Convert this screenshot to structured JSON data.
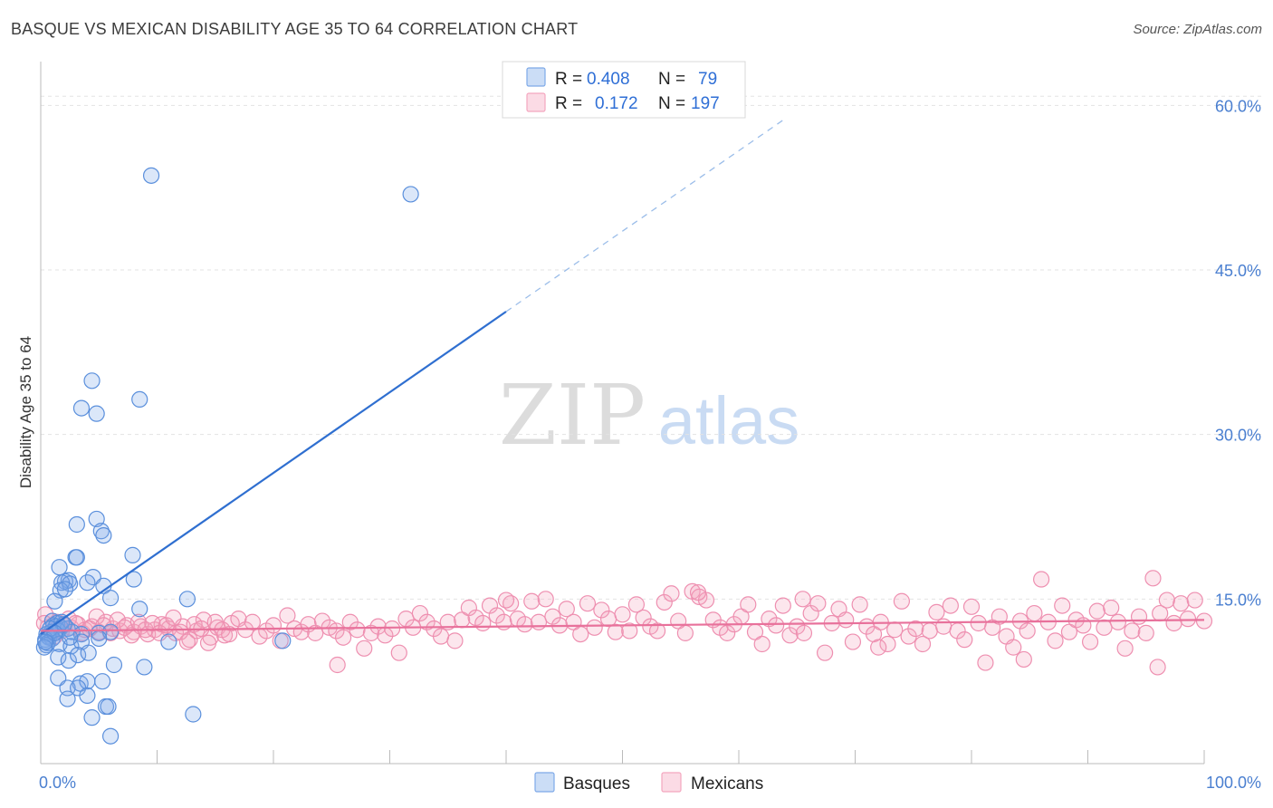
{
  "title": "BASQUE VS MEXICAN DISABILITY AGE 35 TO 64 CORRELATION CHART",
  "source": "Source: ZipAtlas.com",
  "watermark": {
    "zip": "ZIP",
    "atlas": "atlas"
  },
  "legend_box": {
    "rows": [
      {
        "r_label": "R =",
        "r_value": "0.408",
        "n_label": "N =",
        "n_value": "79",
        "color": "#7ea9e8"
      },
      {
        "r_label": "R =",
        "r_value": "0.172",
        "n_label": "N =",
        "n_value": "197",
        "color": "#f4a6bf"
      }
    ]
  },
  "bottom_legend": [
    {
      "label": "Basques",
      "color": "#7ea9e8"
    },
    {
      "label": "Mexicans",
      "color": "#f4a6bf"
    }
  ],
  "chart_data": {
    "type": "scatter",
    "title": "BASQUE VS MEXICAN DISABILITY AGE 35 TO 64 CORRELATION CHART",
    "xlabel": "",
    "ylabel": "Disability Age 35 to 64",
    "xlim": [
      0,
      100
    ],
    "ylim": [
      0,
      63
    ],
    "x_tick_labels": [
      "0.0%",
      "100.0%"
    ],
    "y_ticks": [
      15,
      30,
      45,
      60
    ],
    "y_tick_labels": [
      "15.0%",
      "30.0%",
      "45.0%",
      "60.0%"
    ],
    "grid": true,
    "series": [
      {
        "name": "Basques",
        "color": "#7ea9e8",
        "R": 0.408,
        "N": 79,
        "trend": {
          "x0": 0,
          "y0": 11.8,
          "x1": 40,
          "y1": 41.2,
          "dash_to_x": 64,
          "dash_to_y": 58.8
        },
        "points": [
          [
            9.5,
            53.6
          ],
          [
            31.8,
            51.9
          ],
          [
            4.4,
            34.9
          ],
          [
            8.5,
            33.2
          ],
          [
            3.5,
            32.4
          ],
          [
            4.8,
            31.9
          ],
          [
            4.8,
            22.3
          ],
          [
            3.1,
            21.8
          ],
          [
            5.2,
            21.2
          ],
          [
            5.4,
            20.8
          ],
          [
            7.9,
            19.0
          ],
          [
            3.0,
            18.8
          ],
          [
            3.1,
            18.8
          ],
          [
            1.6,
            17.9
          ],
          [
            4.5,
            17.0
          ],
          [
            8.0,
            16.8
          ],
          [
            2.1,
            16.6
          ],
          [
            2.4,
            16.7
          ],
          [
            1.8,
            16.5
          ],
          [
            2.5,
            16.4
          ],
          [
            4.0,
            16.5
          ],
          [
            5.4,
            16.2
          ],
          [
            1.7,
            15.8
          ],
          [
            2.1,
            15.9
          ],
          [
            6.0,
            15.1
          ],
          [
            12.6,
            15.0
          ],
          [
            1.2,
            14.8
          ],
          [
            8.5,
            14.1
          ],
          [
            1.0,
            13.0
          ],
          [
            1.4,
            12.8
          ],
          [
            1.1,
            12.6
          ],
          [
            1.3,
            12.5
          ],
          [
            1.7,
            12.4
          ],
          [
            2.3,
            12.3
          ],
          [
            1.5,
            12.1
          ],
          [
            0.9,
            12.0
          ],
          [
            2.7,
            12.0
          ],
          [
            3.5,
            11.8
          ],
          [
            5.0,
            11.9
          ],
          [
            6.0,
            12.0
          ],
          [
            0.5,
            11.8
          ],
          [
            0.6,
            11.6
          ],
          [
            0.7,
            11.5
          ],
          [
            1.0,
            11.4
          ],
          [
            0.4,
            11.3
          ],
          [
            0.6,
            11.0
          ],
          [
            0.5,
            10.8
          ],
          [
            0.3,
            10.6
          ],
          [
            1.6,
            10.9
          ],
          [
            2.6,
            10.7
          ],
          [
            3.5,
            11.1
          ],
          [
            11.0,
            11.1
          ],
          [
            20.8,
            11.2
          ],
          [
            5.0,
            11.4
          ],
          [
            1.5,
            9.7
          ],
          [
            2.4,
            9.4
          ],
          [
            3.2,
            9.9
          ],
          [
            4.1,
            10.1
          ],
          [
            6.3,
            9.0
          ],
          [
            8.9,
            8.8
          ],
          [
            1.5,
            7.8
          ],
          [
            3.4,
            7.3
          ],
          [
            4.0,
            7.5
          ],
          [
            5.3,
            7.5
          ],
          [
            2.3,
            6.9
          ],
          [
            3.2,
            6.9
          ],
          [
            4.0,
            6.2
          ],
          [
            2.3,
            5.9
          ],
          [
            5.6,
            5.2
          ],
          [
            5.8,
            5.2
          ],
          [
            4.4,
            4.2
          ],
          [
            13.1,
            4.5
          ],
          [
            6.0,
            2.5
          ],
          [
            1.8,
            12.9
          ],
          [
            2.0,
            12.7
          ],
          [
            0.8,
            12.3
          ],
          [
            1.2,
            11.9
          ],
          [
            2.5,
            11.5
          ],
          [
            0.4,
            11.1
          ]
        ]
      },
      {
        "name": "Mexicans",
        "color": "#f4a6bf",
        "R": 0.172,
        "N": 197,
        "trend": {
          "x0": 0,
          "y0": 12.1,
          "x1": 100,
          "y1": 13.1
        },
        "points": [
          [
            0.4,
            13.6
          ],
          [
            1.0,
            13.0
          ],
          [
            1.4,
            12.9
          ],
          [
            2.0,
            12.6
          ],
          [
            2.6,
            12.4
          ],
          [
            3.2,
            12.7
          ],
          [
            3.8,
            12.2
          ],
          [
            4.4,
            12.5
          ],
          [
            5.0,
            12.0
          ],
          [
            5.6,
            12.9
          ],
          [
            6.2,
            12.3
          ],
          [
            6.8,
            12.1
          ],
          [
            7.4,
            12.6
          ],
          [
            8.0,
            12.0
          ],
          [
            8.6,
            12.5
          ],
          [
            9.2,
            11.8
          ],
          [
            9.8,
            12.2
          ],
          [
            10.4,
            12.7
          ],
          [
            11.0,
            12.3
          ],
          [
            11.6,
            11.9
          ],
          [
            12.2,
            12.5
          ],
          [
            12.8,
            11.3
          ],
          [
            13.4,
            12.1
          ],
          [
            14.0,
            13.1
          ],
          [
            14.6,
            11.5
          ],
          [
            15.2,
            12.4
          ],
          [
            15.8,
            11.7
          ],
          [
            16.4,
            12.8
          ],
          [
            17.0,
            13.2
          ],
          [
            17.6,
            12.2
          ],
          [
            18.2,
            12.9
          ],
          [
            18.8,
            11.6
          ],
          [
            19.4,
            12.1
          ],
          [
            20.0,
            12.6
          ],
          [
            20.6,
            11.2
          ],
          [
            21.2,
            13.5
          ],
          [
            21.8,
            12.3
          ],
          [
            22.4,
            12.0
          ],
          [
            23.0,
            12.7
          ],
          [
            23.6,
            11.9
          ],
          [
            24.2,
            13.0
          ],
          [
            24.8,
            12.4
          ],
          [
            25.4,
            12.1
          ],
          [
            26.0,
            11.5
          ],
          [
            26.6,
            12.9
          ],
          [
            27.2,
            12.2
          ],
          [
            27.8,
            10.5
          ],
          [
            28.4,
            11.9
          ],
          [
            29.0,
            12.5
          ],
          [
            29.6,
            11.7
          ],
          [
            30.2,
            12.3
          ],
          [
            30.8,
            10.1
          ],
          [
            31.4,
            13.2
          ],
          [
            32.0,
            12.4
          ],
          [
            32.6,
            13.7
          ],
          [
            33.2,
            12.9
          ],
          [
            33.8,
            12.3
          ],
          [
            34.4,
            11.6
          ],
          [
            35.0,
            12.9
          ],
          [
            35.6,
            11.2
          ],
          [
            36.2,
            13.1
          ],
          [
            36.8,
            14.2
          ],
          [
            37.4,
            13.3
          ],
          [
            38.0,
            12.8
          ],
          [
            38.6,
            14.4
          ],
          [
            39.2,
            13.5
          ],
          [
            39.8,
            12.9
          ],
          [
            40.4,
            14.6
          ],
          [
            41.0,
            13.2
          ],
          [
            41.6,
            12.7
          ],
          [
            42.2,
            14.8
          ],
          [
            42.8,
            12.9
          ],
          [
            43.4,
            15.0
          ],
          [
            44.0,
            13.4
          ],
          [
            44.6,
            12.6
          ],
          [
            45.2,
            14.1
          ],
          [
            45.8,
            12.9
          ],
          [
            46.4,
            11.8
          ],
          [
            47.0,
            14.6
          ],
          [
            47.6,
            12.4
          ],
          [
            48.2,
            14.0
          ],
          [
            48.8,
            13.2
          ],
          [
            49.4,
            12.0
          ],
          [
            50.0,
            13.6
          ],
          [
            50.6,
            12.1
          ],
          [
            51.2,
            14.5
          ],
          [
            51.8,
            13.3
          ],
          [
            52.4,
            12.5
          ],
          [
            53.0,
            12.1
          ],
          [
            53.6,
            14.7
          ],
          [
            54.2,
            15.5
          ],
          [
            54.8,
            13.0
          ],
          [
            55.4,
            11.9
          ],
          [
            56.0,
            15.7
          ],
          [
            56.6,
            15.2
          ],
          [
            57.2,
            14.9
          ],
          [
            57.8,
            13.1
          ],
          [
            58.4,
            12.4
          ],
          [
            59.0,
            11.9
          ],
          [
            59.6,
            12.7
          ],
          [
            60.2,
            13.4
          ],
          [
            60.8,
            14.5
          ],
          [
            61.4,
            12.0
          ],
          [
            62.0,
            10.9
          ],
          [
            62.6,
            13.2
          ],
          [
            63.2,
            12.6
          ],
          [
            63.8,
            14.4
          ],
          [
            64.4,
            11.7
          ],
          [
            65.0,
            12.5
          ],
          [
            65.6,
            11.9
          ],
          [
            66.2,
            13.7
          ],
          [
            66.8,
            14.6
          ],
          [
            67.4,
            10.1
          ],
          [
            68.0,
            12.8
          ],
          [
            68.6,
            14.1
          ],
          [
            69.2,
            13.1
          ],
          [
            69.8,
            11.1
          ],
          [
            70.4,
            14.5
          ],
          [
            71.0,
            12.5
          ],
          [
            71.6,
            11.8
          ],
          [
            72.2,
            12.9
          ],
          [
            72.8,
            10.9
          ],
          [
            73.4,
            12.2
          ],
          [
            74.0,
            14.8
          ],
          [
            74.6,
            11.6
          ],
          [
            75.2,
            12.3
          ],
          [
            75.8,
            10.9
          ],
          [
            76.4,
            12.1
          ],
          [
            77.0,
            13.8
          ],
          [
            77.6,
            12.5
          ],
          [
            78.2,
            14.4
          ],
          [
            78.8,
            12.1
          ],
          [
            79.4,
            11.3
          ],
          [
            80.0,
            14.3
          ],
          [
            80.6,
            12.8
          ],
          [
            81.2,
            9.2
          ],
          [
            81.8,
            12.4
          ],
          [
            82.4,
            13.4
          ],
          [
            83.0,
            11.6
          ],
          [
            83.6,
            10.6
          ],
          [
            84.2,
            13.0
          ],
          [
            84.8,
            12.1
          ],
          [
            85.4,
            13.7
          ],
          [
            86.0,
            16.8
          ],
          [
            86.6,
            12.9
          ],
          [
            87.2,
            11.2
          ],
          [
            87.8,
            14.4
          ],
          [
            88.4,
            12.0
          ],
          [
            89.0,
            13.1
          ],
          [
            89.6,
            12.6
          ],
          [
            90.2,
            11.1
          ],
          [
            90.8,
            13.9
          ],
          [
            91.4,
            12.4
          ],
          [
            92.0,
            14.2
          ],
          [
            92.6,
            12.9
          ],
          [
            93.2,
            10.5
          ],
          [
            93.8,
            12.1
          ],
          [
            94.4,
            13.4
          ],
          [
            95.0,
            11.9
          ],
          [
            95.6,
            16.9
          ],
          [
            96.2,
            13.7
          ],
          [
            96.8,
            14.9
          ],
          [
            97.4,
            12.8
          ],
          [
            98.0,
            14.6
          ],
          [
            98.6,
            13.2
          ],
          [
            99.2,
            14.9
          ],
          [
            0.6,
            12.4
          ],
          [
            1.2,
            11.6
          ],
          [
            1.8,
            12.1
          ],
          [
            2.4,
            13.2
          ],
          [
            3.0,
            12.8
          ],
          [
            3.6,
            11.9
          ],
          [
            4.2,
            12.3
          ],
          [
            4.8,
            13.4
          ],
          [
            5.4,
            12.6
          ],
          [
            6.0,
            11.9
          ],
          [
            6.6,
            13.1
          ],
          [
            7.2,
            12.4
          ],
          [
            7.8,
            11.7
          ],
          [
            8.4,
            12.9
          ],
          [
            9.0,
            12.2
          ],
          [
            9.6,
            12.8
          ],
          [
            10.2,
            11.9
          ],
          [
            10.8,
            12.6
          ],
          [
            11.4,
            13.3
          ],
          [
            12.0,
            12.0
          ],
          [
            12.6,
            11.1
          ],
          [
            13.2,
            12.7
          ],
          [
            13.8,
            12.3
          ],
          [
            14.4,
            11.0
          ],
          [
            15.0,
            12.9
          ],
          [
            15.6,
            12.2
          ],
          [
            16.2,
            11.8
          ],
          [
            25.5,
            9.0
          ],
          [
            72.0,
            10.6
          ],
          [
            84.5,
            9.5
          ],
          [
            96.0,
            8.8
          ],
          [
            100.0,
            13.0
          ],
          [
            56.5,
            15.6
          ],
          [
            40.0,
            14.9
          ],
          [
            65.5,
            15.0
          ],
          [
            0.3,
            12.8
          ]
        ]
      }
    ]
  }
}
